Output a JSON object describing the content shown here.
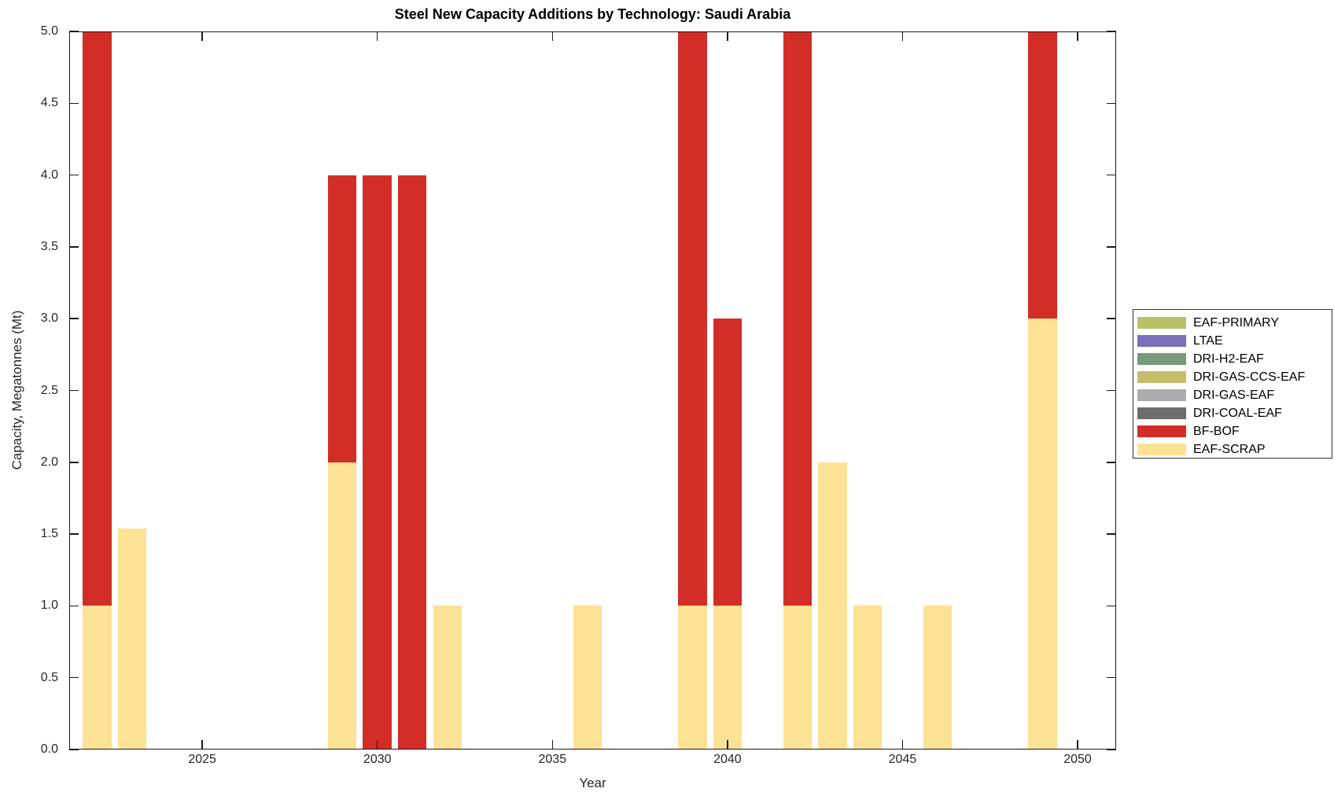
{
  "chart_data": {
    "type": "bar",
    "stacked": true,
    "title": "Steel New Capacity Additions by Technology: Saudi Arabia",
    "xlabel": "Year",
    "ylabel": "Capacity, Megatonnes (Mt)",
    "xlim": [
      2021.2,
      2051.1
    ],
    "ylim": [
      0,
      5
    ],
    "x_ticks": [
      2025,
      2030,
      2035,
      2040,
      2045,
      2050
    ],
    "y_ticks": [
      "0.0",
      "0.5",
      "1.0",
      "1.5",
      "2.0",
      "2.5",
      "3.0",
      "3.5",
      "4.0",
      "4.5",
      "5.0"
    ],
    "grid": false,
    "legend_position": "right-outside",
    "bar_width_years": 0.82,
    "axis_color": "#1a1a1a",
    "series": [
      {
        "name": "EAF-PRIMARY",
        "color": "#B8C167"
      },
      {
        "name": "LTAE",
        "color": "#7870BA"
      },
      {
        "name": "DRI-H2-EAF",
        "color": "#769A7B"
      },
      {
        "name": "DRI-GAS-CCS-EAF",
        "color": "#C6BC6B"
      },
      {
        "name": "DRI-GAS-EAF",
        "color": "#ABABAB"
      },
      {
        "name": "DRI-COAL-EAF",
        "color": "#6D6D6D"
      },
      {
        "name": "BF-BOF",
        "color": "#D22D26"
      },
      {
        "name": "EAF-SCRAP",
        "color": "#FCE294"
      }
    ],
    "stack_order": [
      "EAF-SCRAP",
      "BF-BOF"
    ],
    "bars": [
      {
        "year": 2022,
        "values": {
          "EAF-SCRAP": 1.0,
          "BF-BOF": 4.0
        }
      },
      {
        "year": 2023,
        "values": {
          "EAF-SCRAP": 1.54
        }
      },
      {
        "year": 2029,
        "values": {
          "EAF-SCRAP": 2.0,
          "BF-BOF": 2.0
        }
      },
      {
        "year": 2030,
        "values": {
          "BF-BOF": 4.0
        }
      },
      {
        "year": 2031,
        "values": {
          "BF-BOF": 4.0
        }
      },
      {
        "year": 2032,
        "values": {
          "EAF-SCRAP": 1.0
        }
      },
      {
        "year": 2036,
        "values": {
          "EAF-SCRAP": 1.0
        }
      },
      {
        "year": 2039,
        "values": {
          "EAF-SCRAP": 1.0,
          "BF-BOF": 4.0
        }
      },
      {
        "year": 2040,
        "values": {
          "EAF-SCRAP": 1.0,
          "BF-BOF": 2.0
        }
      },
      {
        "year": 2042,
        "values": {
          "EAF-SCRAP": 1.0,
          "BF-BOF": 4.0
        }
      },
      {
        "year": 2043,
        "values": {
          "EAF-SCRAP": 2.0
        }
      },
      {
        "year": 2044,
        "values": {
          "EAF-SCRAP": 1.0
        }
      },
      {
        "year": 2046,
        "values": {
          "EAF-SCRAP": 1.0
        }
      },
      {
        "year": 2049,
        "values": {
          "EAF-SCRAP": 3.0,
          "BF-BOF": 2.0
        }
      }
    ],
    "legend_entries": [
      "EAF-PRIMARY",
      "LTAE",
      "DRI-H2-EAF",
      "DRI-GAS-CCS-EAF",
      "DRI-GAS-EAF",
      "DRI-COAL-EAF",
      "BF-BOF",
      "EAF-SCRAP"
    ]
  }
}
